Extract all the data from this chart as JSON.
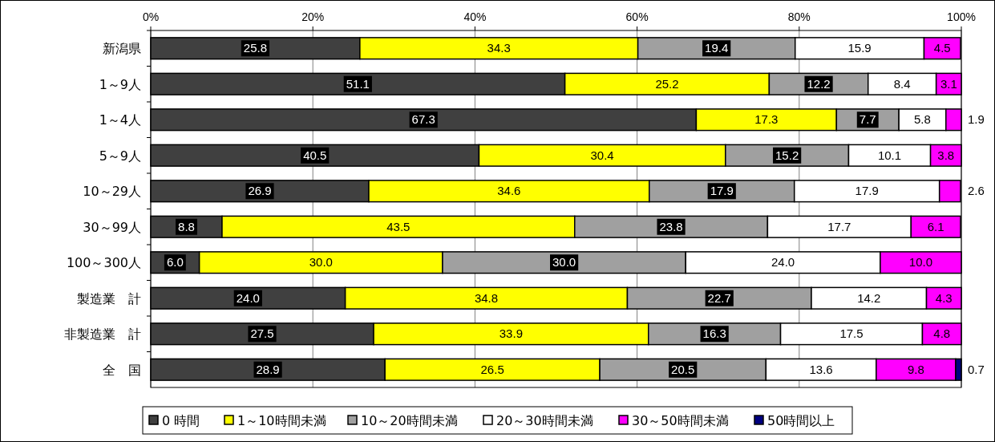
{
  "chart_data": {
    "type": "bar",
    "orientation": "horizontal",
    "stacked": true,
    "grid": "x",
    "legend": "bottom",
    "categories": [
      "新潟県",
      "1～9人",
      "1～4人",
      "5～9人",
      "10～29人",
      "30～99人",
      "100～300人",
      "製造業　計",
      "非製造業　計",
      "全　国"
    ],
    "xlim": [
      0,
      100
    ],
    "xticks": [
      {
        "value": 0,
        "label": "0%"
      },
      {
        "value": 20,
        "label": "20%"
      },
      {
        "value": 40,
        "label": "40%"
      },
      {
        "value": 60,
        "label": "60%"
      },
      {
        "value": 80,
        "label": "80%"
      },
      {
        "value": 100,
        "label": "100%"
      }
    ],
    "series": [
      {
        "name": "0 時間",
        "color": "#404040",
        "values": [
          25.8,
          51.1,
          67.3,
          40.5,
          26.9,
          8.8,
          6.0,
          24.0,
          27.5,
          28.9
        ],
        "value_labels": [
          "25.8",
          "51.1",
          "67.3",
          "40.5",
          "26.9",
          "8.8",
          "6.0",
          "24.0",
          "27.5",
          "28.9"
        ]
      },
      {
        "name": "1～10時間未満",
        "color": "#ffff00",
        "values": [
          34.3,
          25.2,
          17.3,
          30.4,
          34.6,
          43.5,
          30.0,
          34.8,
          33.9,
          26.5
        ],
        "value_labels": [
          "34.3",
          "25.2",
          "17.3",
          "30.4",
          "34.6",
          "43.5",
          "30.0",
          "34.8",
          "33.9",
          "26.5"
        ]
      },
      {
        "name": "10～20時間未満",
        "color": "#a0a0a0",
        "values": [
          19.4,
          12.2,
          7.7,
          15.2,
          17.9,
          23.8,
          30.0,
          22.7,
          16.3,
          20.5
        ],
        "value_labels": [
          "19.4",
          "12.2",
          "7.7",
          "15.2",
          "17.9",
          "23.8",
          "30.0",
          "22.7",
          "16.3",
          "20.5"
        ]
      },
      {
        "name": "20～30時間未満",
        "color": "#ffffff",
        "values": [
          15.9,
          8.4,
          5.8,
          10.1,
          17.9,
          17.7,
          24.0,
          14.2,
          17.5,
          13.6
        ],
        "value_labels": [
          "15.9",
          "8.4",
          "5.8",
          "10.1",
          "17.9",
          "17.7",
          "24.0",
          "14.2",
          "17.5",
          "13.6"
        ]
      },
      {
        "name": "30～50時間未満",
        "color": "#ff00ff",
        "values": [
          4.5,
          3.1,
          1.9,
          3.8,
          2.6,
          6.1,
          10.0,
          4.3,
          4.8,
          9.8
        ],
        "value_labels": [
          "4.5",
          "3.1",
          "1.9",
          "3.8",
          "2.6",
          "6.1",
          "10.0",
          "4.3",
          "4.8",
          "9.8"
        ]
      },
      {
        "name": "50時間以上",
        "color": "#000080",
        "values": [
          null,
          null,
          null,
          null,
          null,
          null,
          null,
          null,
          null,
          0.7
        ],
        "value_labels": [
          null,
          null,
          null,
          null,
          null,
          null,
          null,
          null,
          null,
          "0.7"
        ]
      }
    ]
  }
}
